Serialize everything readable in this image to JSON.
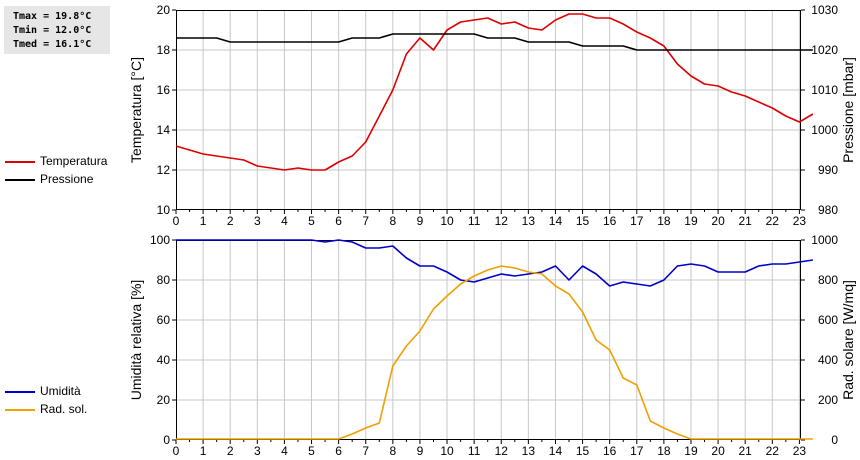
{
  "stats": {
    "tmax": "Tmax = 19.8°C",
    "tmin": "Tmin = 12.0°C",
    "tmed": "Tmed = 16.1°C"
  },
  "legend_top": [
    {
      "label": "Temperatura",
      "color": "#dd0000"
    },
    {
      "label": "Pressione",
      "color": "#000000"
    }
  ],
  "legend_bottom": [
    {
      "label": "Umidità",
      "color": "#0000cc"
    },
    {
      "label": "Rad. sol.",
      "color": "#f0a000"
    }
  ],
  "chart_data": [
    {
      "type": "line",
      "xlim": [
        0,
        24
      ],
      "x_ticks": [
        "0",
        "1",
        "2",
        "3",
        "4",
        "5",
        "6",
        "7",
        "8",
        "9",
        "10",
        "11",
        "12",
        "13",
        "14",
        "15",
        "16",
        "17",
        "18",
        "19",
        "20",
        "21",
        "22",
        "23"
      ],
      "ylabel_left": "Temperatura [°C]",
      "ylim_left": [
        10,
        20
      ],
      "y_ticks_left": [
        "10",
        "12",
        "14",
        "16",
        "18",
        "20"
      ],
      "ylabel_right": "Pressione [mbar]",
      "ylim_right": [
        980,
        1030
      ],
      "y_ticks_right": [
        "980",
        "990",
        "1000",
        "1010",
        "1020",
        "1030"
      ],
      "grid": true,
      "series": [
        {
          "name": "Temperatura",
          "axis": "left",
          "color": "#dd0000",
          "x": [
            0,
            0.5,
            1,
            1.5,
            2,
            2.5,
            3,
            3.5,
            4,
            4.5,
            5,
            5.5,
            6,
            6.5,
            7,
            7.5,
            8,
            8.5,
            9,
            9.5,
            10,
            10.5,
            11,
            11.5,
            12,
            12.5,
            13,
            13.5,
            14,
            14.5,
            15,
            15.5,
            16,
            16.5,
            17,
            17.5,
            18,
            18.5,
            19,
            19.5,
            20,
            20.5,
            21,
            21.5,
            22,
            22.5,
            23,
            23.5
          ],
          "y": [
            13.2,
            13.0,
            12.8,
            12.7,
            12.6,
            12.5,
            12.2,
            12.1,
            12.0,
            12.1,
            12.0,
            12.0,
            12.4,
            12.7,
            13.4,
            14.7,
            16.0,
            17.8,
            18.6,
            18.0,
            19.0,
            19.4,
            19.5,
            19.6,
            19.3,
            19.4,
            19.1,
            19.0,
            19.5,
            19.8,
            19.8,
            19.6,
            19.6,
            19.3,
            18.9,
            18.6,
            18.2,
            17.3,
            16.7,
            16.3,
            16.2,
            15.9,
            15.7,
            15.4,
            15.1,
            14.7,
            14.4,
            14.8
          ]
        },
        {
          "name": "Pressione",
          "axis": "right",
          "color": "#000000",
          "x": [
            0,
            0.5,
            1,
            1.5,
            2,
            2.5,
            3,
            3.5,
            4,
            4.5,
            5,
            5.5,
            6,
            6.5,
            7,
            7.5,
            8,
            8.5,
            9,
            9.5,
            10,
            10.5,
            11,
            11.5,
            12,
            12.5,
            13,
            13.5,
            14,
            14.5,
            15,
            15.5,
            16,
            16.5,
            17,
            17.5,
            18,
            18.5,
            19,
            19.5,
            20,
            20.5,
            21,
            21.5,
            22,
            22.5,
            23,
            23.5
          ],
          "y": [
            1023,
            1023,
            1023,
            1023,
            1022,
            1022,
            1022,
            1022,
            1022,
            1022,
            1022,
            1022,
            1022,
            1023,
            1023,
            1023,
            1024,
            1024,
            1024,
            1024,
            1024,
            1024,
            1024,
            1023,
            1023,
            1023,
            1022,
            1022,
            1022,
            1022,
            1021,
            1021,
            1021,
            1021,
            1020,
            1020,
            1020,
            1020,
            1020,
            1020,
            1020,
            1020,
            1020,
            1020,
            1020,
            1020,
            1020,
            1020
          ]
        }
      ]
    },
    {
      "type": "line",
      "xlim": [
        0,
        24
      ],
      "x_ticks": [
        "0",
        "1",
        "2",
        "3",
        "4",
        "5",
        "6",
        "7",
        "8",
        "9",
        "10",
        "11",
        "12",
        "13",
        "14",
        "15",
        "16",
        "17",
        "18",
        "19",
        "20",
        "21",
        "22",
        "23"
      ],
      "ylabel_left": "Umidità relativa [%]",
      "ylim_left": [
        0,
        100
      ],
      "y_ticks_left": [
        "0",
        "20",
        "40",
        "60",
        "80",
        "100"
      ],
      "ylabel_right": "Rad. solare [W/mq]",
      "ylim_right": [
        0,
        1000
      ],
      "y_ticks_right": [
        "0",
        "200",
        "400",
        "600",
        "800",
        "1000"
      ],
      "grid": true,
      "series": [
        {
          "name": "Umidità",
          "axis": "left",
          "color": "#0000cc",
          "x": [
            0,
            0.5,
            1,
            1.5,
            2,
            2.5,
            3,
            3.5,
            4,
            4.5,
            5,
            5.5,
            6,
            6.5,
            7,
            7.5,
            8,
            8.5,
            9,
            9.5,
            10,
            10.5,
            11,
            11.5,
            12,
            12.5,
            13,
            13.5,
            14,
            14.5,
            15,
            15.5,
            16,
            16.5,
            17,
            17.5,
            18,
            18.5,
            19,
            19.5,
            20,
            20.5,
            21,
            21.5,
            22,
            22.5,
            23,
            23.5
          ],
          "y": [
            100,
            100,
            100,
            100,
            100,
            100,
            100,
            100,
            100,
            100,
            100,
            99,
            100,
            99,
            96,
            96,
            97,
            91,
            87,
            87,
            84,
            80,
            79,
            81,
            83,
            82,
            83,
            84,
            87,
            80,
            87,
            83,
            77,
            79,
            78,
            77,
            80,
            87,
            88,
            87,
            84,
            84,
            84,
            87,
            88,
            88,
            89,
            90
          ]
        },
        {
          "name": "Rad. sol.",
          "axis": "right",
          "color": "#f0a000",
          "x": [
            0,
            0.5,
            1,
            1.5,
            2,
            2.5,
            3,
            3.5,
            4,
            4.5,
            5,
            5.5,
            6,
            6.5,
            7,
            7.5,
            8,
            8.5,
            9,
            9.5,
            10,
            10.5,
            11,
            11.5,
            12,
            12.5,
            13,
            13.5,
            14,
            14.5,
            15,
            15.5,
            16,
            16.5,
            17,
            17.5,
            18,
            18.5,
            19,
            19.5,
            20,
            20.5,
            21,
            21.5,
            22,
            22.5,
            23,
            23.5
          ],
          "y": [
            5,
            5,
            5,
            5,
            5,
            5,
            5,
            5,
            5,
            5,
            5,
            5,
            5,
            30,
            60,
            85,
            370,
            470,
            545,
            655,
            720,
            780,
            820,
            850,
            870,
            860,
            840,
            830,
            770,
            730,
            640,
            500,
            450,
            310,
            275,
            95,
            60,
            30,
            5,
            5,
            5,
            5,
            5,
            5,
            5,
            5,
            5,
            5
          ]
        }
      ]
    }
  ]
}
